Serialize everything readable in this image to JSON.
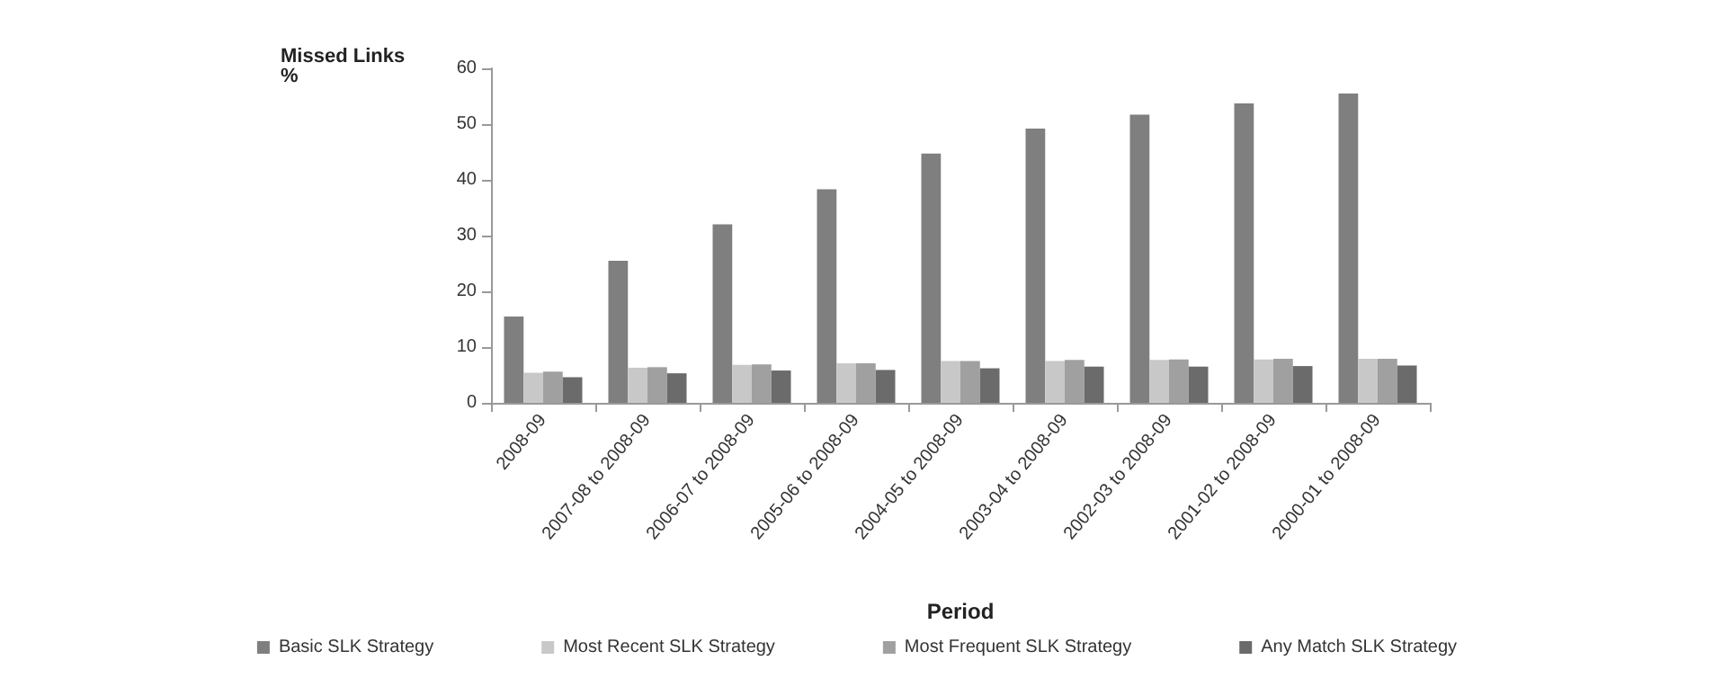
{
  "chart_data": {
    "type": "bar",
    "xlabel": "Period",
    "ylabel": "Missed Links\n%",
    "categories": [
      "2008-09",
      "2007-08 to 2008-09",
      "2006-07 to 2008-09",
      "2005-06 to 2008-09",
      "2004-05 to 2008-09",
      "2003-04 to 2008-09",
      "2002-03 to 2008-09",
      "2001-02 to 2008-09",
      "2000-01 to 2008-09"
    ],
    "series": [
      {
        "name": "Basic SLK Strategy",
        "color": "#7f7f7f",
        "values": [
          15.5,
          25.5,
          32,
          38.3,
          44.7,
          49.2,
          51.7,
          53.7,
          55.5
        ]
      },
      {
        "name": "Most Recent SLK Strategy",
        "color": "#c8c8c8",
        "values": [
          5.4,
          6.3,
          6.8,
          7.1,
          7.5,
          7.5,
          7.7,
          7.8,
          7.9
        ]
      },
      {
        "name": "Most Frequent SLK Strategy",
        "color": "#a0a0a0",
        "values": [
          5.6,
          6.4,
          6.9,
          7.1,
          7.5,
          7.7,
          7.8,
          7.9,
          7.9
        ]
      },
      {
        "name": "Any Match SLK Strategy",
        "color": "#6b6b6b",
        "values": [
          4.6,
          5.3,
          5.8,
          5.9,
          6.2,
          6.5,
          6.5,
          6.6,
          6.7
        ]
      }
    ],
    "ylim": [
      0,
      60
    ],
    "yticks": [
      0,
      10,
      20,
      30,
      40,
      50,
      60
    ],
    "grid": false,
    "legend": "bottom"
  }
}
